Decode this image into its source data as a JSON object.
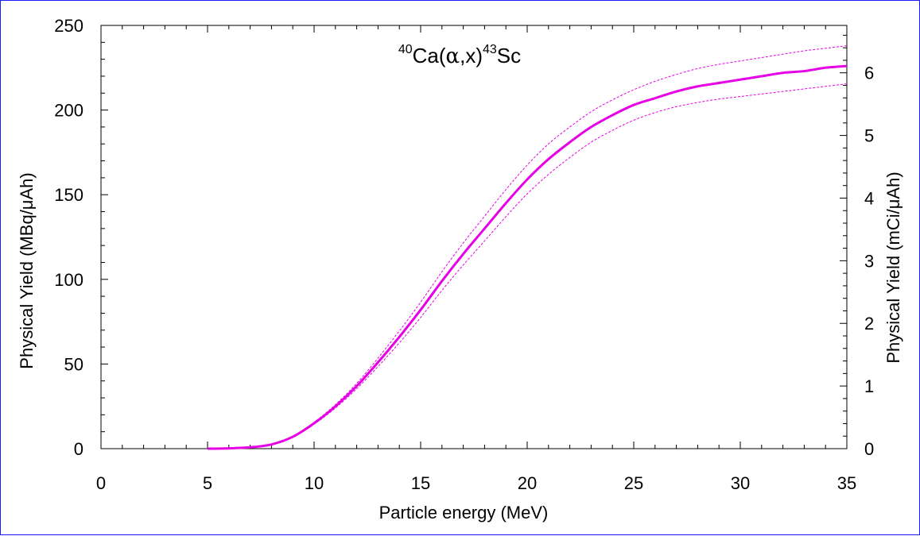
{
  "chart_data": {
    "type": "line",
    "title": {
      "sup1": "40",
      "main1": "Ca(",
      "alpha": "α",
      "main2": ",x)",
      "sup2": "43",
      "main3": "Sc"
    },
    "xlabel": "Particle energy (MeV)",
    "ylabel_left": "Physical Yield (MBq/μAh)",
    "ylabel_right": "Physical Yield (mCi/μAh)",
    "xlim": [
      0,
      35
    ],
    "ylim": [
      0,
      250
    ],
    "ylim_right": [
      0,
      6.757
    ],
    "x_ticks": [
      0,
      5,
      10,
      15,
      20,
      25,
      30,
      35
    ],
    "y_ticks": [
      0,
      50,
      100,
      150,
      200,
      250
    ],
    "y_right_ticks": [
      0,
      1,
      2,
      3,
      4,
      5,
      6
    ],
    "grid": false,
    "color": "#e600e6",
    "series": [
      {
        "style": "solid",
        "x": [
          5,
          6,
          7,
          8,
          9,
          10,
          11,
          12,
          13,
          14,
          15,
          16,
          17,
          18,
          19,
          20,
          21,
          22,
          23,
          24,
          25,
          26,
          27,
          28,
          29,
          30,
          31,
          32,
          33,
          34,
          35
        ],
        "y": [
          0,
          0.2,
          0.8,
          2.5,
          7,
          15,
          25,
          37,
          51,
          66,
          82,
          99,
          115,
          130,
          145,
          159,
          171,
          181,
          190,
          197,
          203,
          207,
          211,
          214,
          216,
          218,
          220,
          222,
          223,
          225,
          226
        ]
      },
      {
        "style": "dotted",
        "x": [
          5,
          6,
          7,
          8,
          9,
          10,
          11,
          12,
          13,
          14,
          15,
          16,
          17,
          18,
          19,
          20,
          21,
          22,
          23,
          24,
          25,
          26,
          27,
          28,
          29,
          30,
          31,
          32,
          33,
          34,
          35
        ],
        "y": [
          0,
          0.2,
          0.8,
          2.6,
          7.3,
          15.6,
          26,
          38.6,
          53.5,
          69.5,
          86.5,
          104.5,
          121.5,
          137.3,
          153,
          167.5,
          180,
          190,
          199,
          206,
          212,
          217,
          221,
          224.5,
          227,
          229,
          231,
          233,
          235,
          236.5,
          238
        ]
      },
      {
        "style": "dotted",
        "x": [
          5,
          6,
          7,
          8,
          9,
          10,
          11,
          12,
          13,
          14,
          15,
          16,
          17,
          18,
          19,
          20,
          21,
          22,
          23,
          24,
          25,
          26,
          27,
          28,
          29,
          30,
          31,
          32,
          33,
          34,
          35
        ],
        "y": [
          0,
          0.2,
          0.8,
          2.4,
          6.7,
          14.4,
          24,
          35.4,
          48.5,
          62.5,
          77.5,
          93.5,
          108.5,
          122.7,
          137,
          150.5,
          162,
          172,
          181,
          188,
          194,
          198.5,
          202,
          204.5,
          206.5,
          208,
          209.5,
          211,
          212.5,
          214,
          215.5
        ]
      }
    ]
  }
}
